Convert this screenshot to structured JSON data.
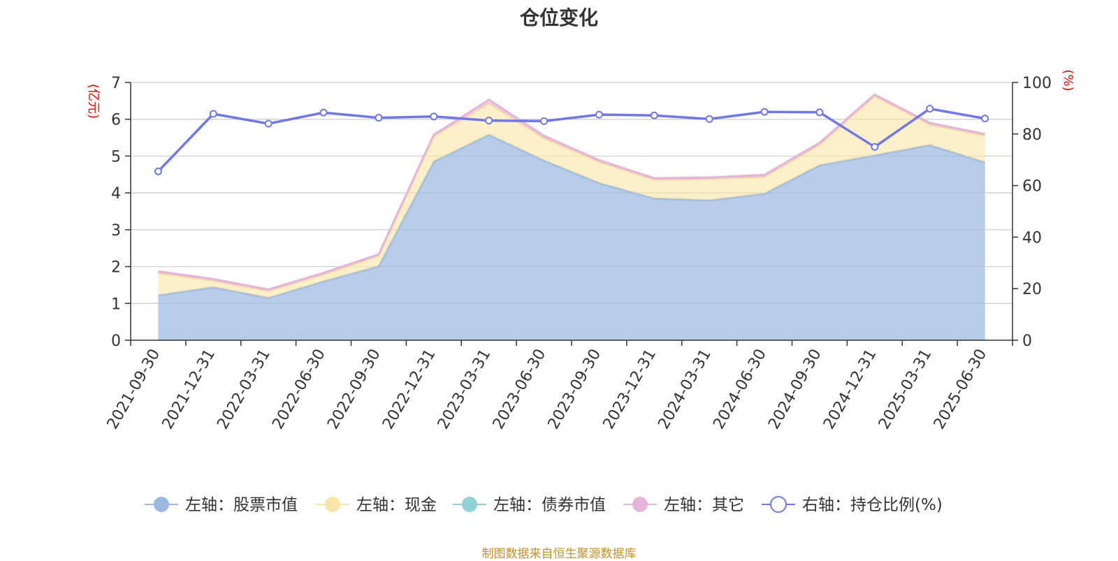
{
  "chart_data": {
    "type": "area",
    "title": "仓位变化",
    "x": [
      "2021-09-30",
      "2021-12-31",
      "2022-03-31",
      "2022-06-30",
      "2022-09-30",
      "2022-12-31",
      "2023-03-31",
      "2023-06-30",
      "2023-09-30",
      "2023-12-31",
      "2024-03-31",
      "2024-06-30",
      "2024-09-30",
      "2024-12-31",
      "2025-03-31",
      "2025-06-30"
    ],
    "left_axis": {
      "label": "(亿元)",
      "ylim": [
        0,
        7
      ],
      "ticks": [
        "0",
        "1",
        "2",
        "3",
        "4",
        "5",
        "6",
        "7"
      ]
    },
    "right_axis": {
      "label": "(%)",
      "ylim": [
        0,
        100
      ],
      "ticks": [
        "0",
        "20",
        "40",
        "60",
        "80",
        "100"
      ]
    },
    "stacked": true,
    "grid": true,
    "legend_position": "bottom",
    "series": [
      {
        "name": "左轴：股票市值",
        "axis": "left",
        "color": "#9ab8e0",
        "values": [
          1.22,
          1.44,
          1.15,
          1.6,
          2.01,
          4.85,
          5.58,
          4.88,
          4.27,
          3.85,
          3.8,
          3.98,
          4.75,
          5.02,
          5.3,
          4.83
        ]
      },
      {
        "name": "左轴：现金",
        "axis": "left",
        "color": "#f8e6a8",
        "values": [
          0.6,
          0.17,
          0.18,
          0.18,
          0.27,
          0.68,
          0.85,
          0.6,
          0.57,
          0.5,
          0.57,
          0.45,
          0.55,
          1.6,
          0.55,
          0.72
        ]
      },
      {
        "name": "左轴：债券市值",
        "axis": "left",
        "color": "#91d0d4",
        "values": [
          0,
          0,
          0,
          0,
          0,
          0,
          0,
          0,
          0,
          0,
          0,
          0,
          0,
          0,
          0,
          0
        ]
      },
      {
        "name": "左轴：其它",
        "axis": "left",
        "color": "#e6b4d8",
        "values": [
          0.05,
          0.05,
          0.05,
          0.05,
          0.05,
          0.05,
          0.1,
          0.07,
          0.05,
          0.05,
          0.05,
          0.06,
          0.06,
          0.05,
          0.05,
          0.05
        ]
      },
      {
        "name": "右轴：持仓比例(%)",
        "axis": "right",
        "color": "#7078e8",
        "values": [
          65.5,
          87.8,
          84.0,
          88.3,
          86.3,
          86.8,
          85.2,
          85.0,
          87.5,
          87.2,
          85.8,
          88.6,
          88.4,
          75.0,
          89.8,
          86.0
        ]
      }
    ]
  },
  "source_note": "制图数据来自恒生聚源数据库"
}
